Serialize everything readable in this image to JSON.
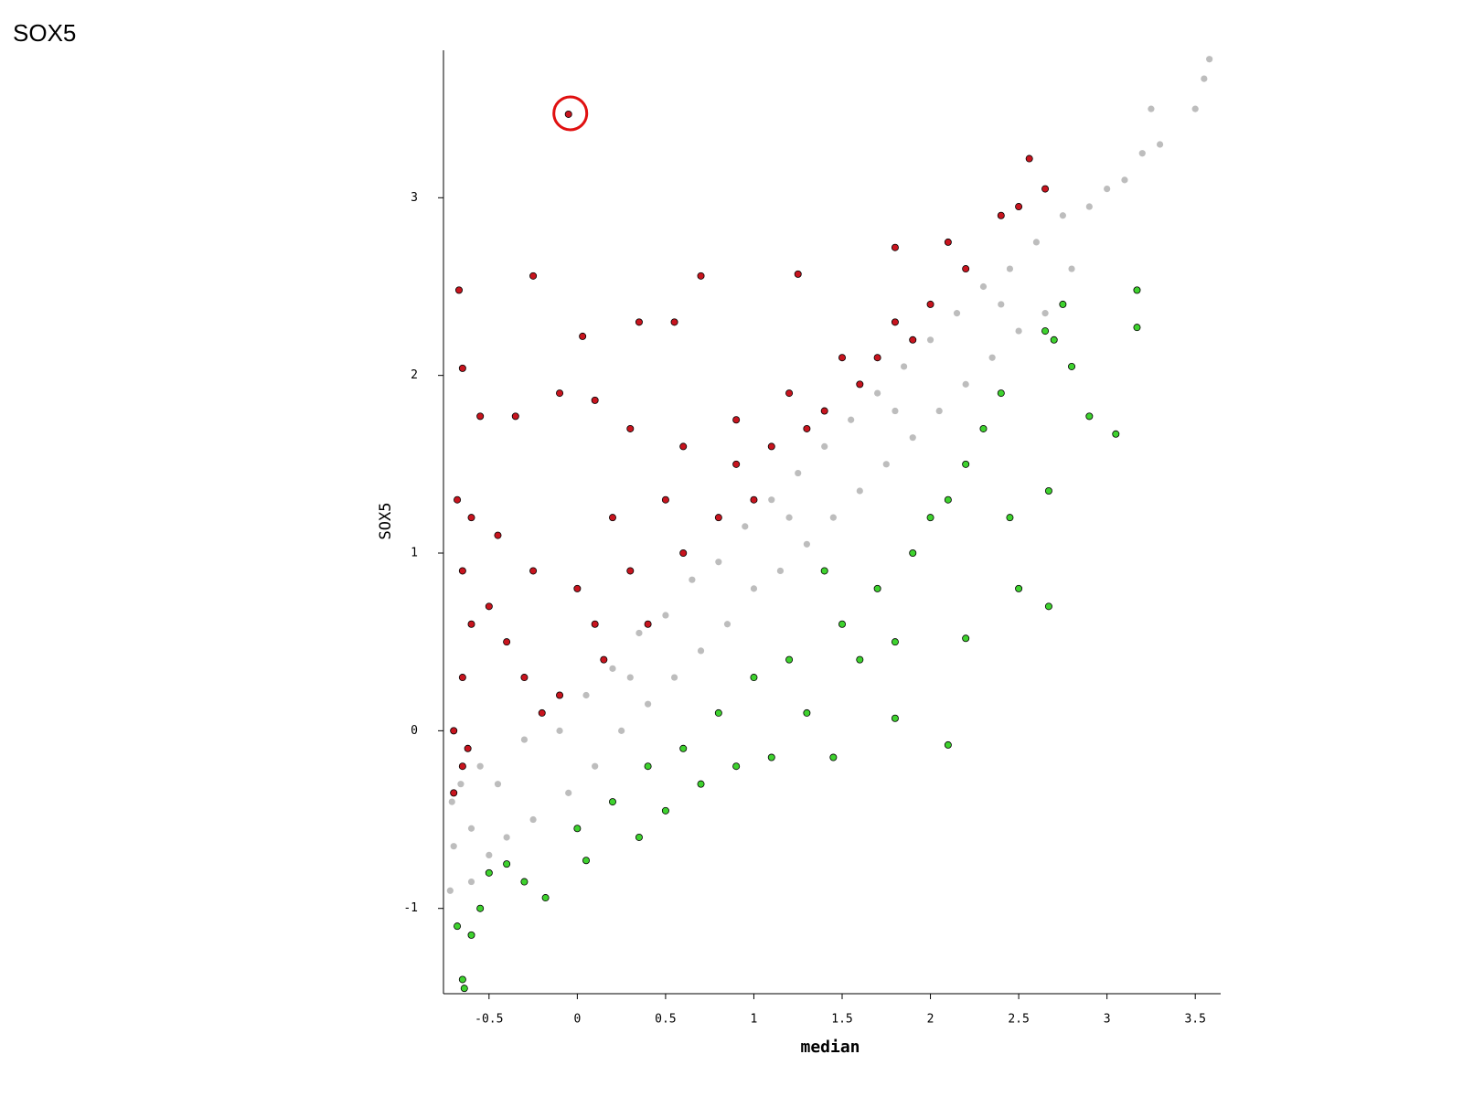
{
  "chart_data": {
    "type": "scatter",
    "title": "SOX5",
    "xlabel": "median",
    "ylabel": "SOX5",
    "xlim": [
      -0.758,
      3.644
    ],
    "ylim": [
      -1.48,
      3.83
    ],
    "xticks": [
      -0.5,
      0,
      0.5,
      1,
      1.5,
      2,
      2.5,
      3,
      3.5
    ],
    "yticks": [
      -1,
      0,
      1,
      2,
      3
    ],
    "series": [
      {
        "color": "#bdbdbd",
        "stroke": "none",
        "x": [
          -0.72,
          -0.71,
          -0.7,
          -0.66,
          -0.6,
          -0.55,
          -0.5,
          -0.45,
          -0.4,
          -0.3,
          -0.25,
          -0.1,
          -0.05,
          0.05,
          0.1,
          0.2,
          0.25,
          0.35,
          0.4,
          0.5,
          0.55,
          0.65,
          0.7,
          0.8,
          0.85,
          0.95,
          1,
          1.1,
          1.15,
          1.25,
          1.3,
          1.4,
          1.45,
          1.55,
          1.6,
          1.7,
          1.75,
          1.85,
          1.9,
          2,
          2.05,
          2.15,
          2.2,
          2.3,
          2.35,
          2.45,
          2.5,
          2.6,
          2.65,
          2.75,
          2.8,
          2.9,
          3,
          3.1,
          3.2,
          3.25,
          3.3,
          3.5,
          3.58,
          3.55,
          1.2,
          0.3,
          -0.6,
          2.4,
          1.8
        ],
        "values": [
          -0.9,
          -0.4,
          -0.65,
          -0.3,
          -0.85,
          -0.2,
          -0.7,
          -0.3,
          -0.6,
          -0.05,
          -0.5,
          0,
          -0.35,
          0.2,
          -0.2,
          0.35,
          0,
          0.55,
          0.15,
          0.65,
          0.3,
          0.85,
          0.45,
          0.95,
          0.6,
          1.15,
          0.8,
          1.3,
          0.9,
          1.45,
          1.05,
          1.6,
          1.2,
          1.75,
          1.35,
          1.9,
          1.5,
          2.05,
          1.65,
          2.2,
          1.8,
          2.35,
          1.95,
          2.5,
          2.1,
          2.6,
          2.25,
          2.75,
          2.35,
          2.9,
          2.6,
          2.95,
          3.05,
          3.1,
          3.25,
          3.5,
          3.3,
          3.5,
          3.78,
          3.67,
          1.2,
          0.3,
          -0.55,
          2.4,
          1.8
        ]
      },
      {
        "color": "#c8141e",
        "stroke": "#000000",
        "x": [
          -0.05,
          2.56,
          -0.67,
          -0.25,
          0.7,
          1.25,
          1.8,
          2.1,
          -0.65,
          0.03,
          0.35,
          0.55,
          2.5,
          2.65,
          -0.55,
          -0.35,
          -0.1,
          0.1,
          0.3,
          0.6,
          0.9,
          1.2,
          1.5,
          1.8,
          2.0,
          -0.68,
          -0.6,
          -0.65,
          -0.6,
          -0.65,
          -0.7,
          -0.65,
          -0.7,
          -0.62,
          -0.5,
          -0.4,
          -0.3,
          -0.2,
          -0.45,
          -0.25,
          0,
          0.1,
          0.2,
          0.3,
          0.5,
          0.6,
          0.8,
          0.9,
          1.0,
          1.1,
          1.3,
          1.4,
          1.6,
          1.7,
          1.9,
          2.2,
          2.4,
          0.4,
          0.15,
          -0.1
        ],
        "values": [
          3.47,
          3.22,
          2.48,
          2.56,
          2.56,
          2.57,
          2.72,
          2.75,
          2.04,
          2.22,
          2.3,
          2.3,
          2.95,
          3.05,
          1.77,
          1.77,
          1.9,
          1.86,
          1.7,
          1.6,
          1.75,
          1.9,
          2.1,
          2.3,
          2.4,
          1.3,
          1.2,
          0.9,
          0.6,
          0.3,
          0,
          -0.2,
          -0.35,
          -0.1,
          0.7,
          0.5,
          0.3,
          0.1,
          1.1,
          0.9,
          0.8,
          0.6,
          1.2,
          0.9,
          1.3,
          1.0,
          1.2,
          1.5,
          1.3,
          1.6,
          1.7,
          1.8,
          1.95,
          2.1,
          2.2,
          2.6,
          2.9,
          0.6,
          0.4,
          0.2
        ]
      },
      {
        "color": "#3ed22e",
        "stroke": "#000000",
        "x": [
          3.17,
          3.17,
          2.9,
          3.05,
          2.67,
          2.67,
          2.1,
          2.2,
          1.8,
          -0.68,
          -0.65,
          -0.64,
          -0.6,
          -0.55,
          -0.5,
          -0.4,
          -0.18,
          -0.3,
          0.05,
          0,
          0.2,
          0.35,
          0.4,
          0.6,
          0.7,
          0.8,
          0.9,
          1.0,
          1.1,
          1.2,
          1.3,
          1.45,
          1.5,
          1.6,
          1.7,
          1.8,
          1.9,
          2.0,
          2.1,
          2.2,
          2.3,
          2.4,
          2.45,
          2.5,
          2.7,
          2.8,
          2.65,
          2.75,
          1.4,
          0.5
        ],
        "values": [
          2.48,
          2.27,
          1.77,
          1.67,
          1.35,
          0.7,
          -0.08,
          0.52,
          0.07,
          -1.1,
          -1.4,
          -1.45,
          -1.15,
          -1.0,
          -0.8,
          -0.75,
          -0.94,
          -0.85,
          -0.73,
          -0.55,
          -0.4,
          -0.6,
          -0.2,
          -0.1,
          -0.3,
          0.1,
          -0.2,
          0.3,
          -0.15,
          0.4,
          0.1,
          -0.15,
          0.6,
          0.4,
          0.8,
          0.5,
          1.0,
          1.2,
          1.3,
          1.5,
          1.7,
          1.9,
          1.2,
          0.8,
          2.2,
          2.05,
          2.25,
          2.4,
          0.9,
          -0.45
        ]
      }
    ]
  }
}
